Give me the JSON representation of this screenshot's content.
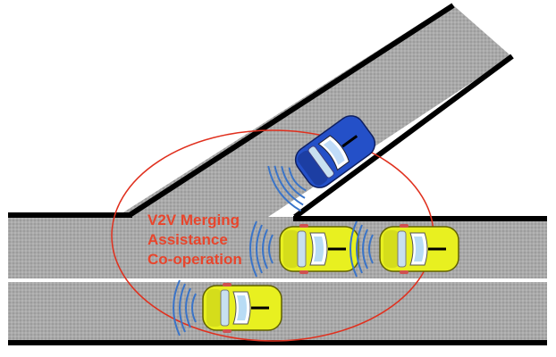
{
  "diagram": {
    "label_lines": [
      "V2V Merging",
      "Assistance",
      "Co-operation"
    ],
    "colors": {
      "road": "#a9a9a9",
      "lane_marking": "#ffffff",
      "road_edge": "#000000",
      "zone_ellipse": "#e0301e",
      "label_text": "#e8452c",
      "signal_waves": "#3a74c8",
      "merging_car": "#2450c8",
      "mainline_car": "#e8f020"
    },
    "vehicles": [
      {
        "role": "merging-vehicle",
        "lane": "on-ramp",
        "color": "blue",
        "icon": "car-icon"
      },
      {
        "role": "lead-vehicle",
        "lane": "main-lane-1",
        "color": "yellow",
        "icon": "car-icon"
      },
      {
        "role": "following-vehicle",
        "lane": "main-lane-1",
        "color": "yellow",
        "icon": "car-icon"
      },
      {
        "role": "adjacent-vehicle",
        "lane": "main-lane-2",
        "color": "yellow",
        "icon": "car-icon"
      }
    ]
  }
}
